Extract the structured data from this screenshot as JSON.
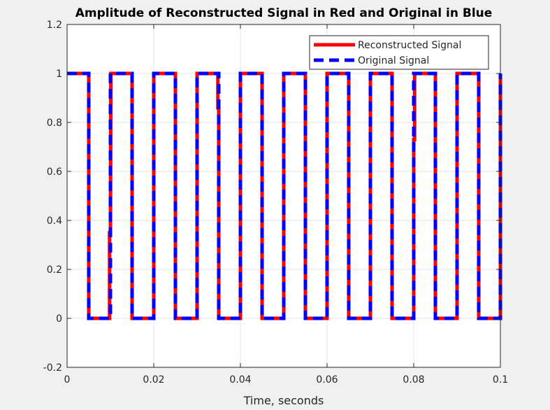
{
  "chart_data": {
    "type": "line",
    "title": "Amplitude of Reconstructed Signal in Red and Original in Blue",
    "xlabel": "Time, seconds",
    "ylabel": "",
    "xlim": [
      0,
      0.1
    ],
    "ylim": [
      -0.2,
      1.2
    ],
    "xticks": [
      0,
      0.02,
      0.04,
      0.06,
      0.08,
      0.1
    ],
    "xtick_labels": [
      "0",
      "0.02",
      "0.04",
      "0.06",
      "0.08",
      "0.1"
    ],
    "yticks": [
      -0.2,
      0,
      0.2,
      0.4,
      0.6,
      0.8,
      1,
      1.2
    ],
    "ytick_labels": [
      "-0.2",
      "0",
      "0.2",
      "0.4",
      "0.6",
      "0.8",
      "1",
      "1.2"
    ],
    "grid": true,
    "legend_position": "top-right",
    "series": [
      {
        "name": "Reconstructed Signal",
        "color": "#ff0000",
        "style": "solid",
        "x": [
          0,
          0.005,
          0.005,
          0.0095,
          0.0098,
          0.0098,
          0.01,
          0.0101,
          0.0101,
          0.015,
          0.015,
          0.02,
          0.02,
          0.025,
          0.025,
          0.03,
          0.03,
          0.0348,
          0.0348,
          0.035,
          0.035,
          0.04,
          0.04,
          0.045,
          0.045,
          0.05,
          0.05,
          0.055,
          0.055,
          0.06,
          0.06,
          0.065,
          0.065,
          0.07,
          0.07,
          0.075,
          0.075,
          0.08,
          0.08,
          0.0802,
          0.0802,
          0.085,
          0.085,
          0.09,
          0.09,
          0.095,
          0.095,
          0.1,
          0.1
        ],
        "y": [
          1,
          1,
          0,
          0,
          0,
          0.35,
          0.35,
          1,
          1,
          1,
          0,
          0,
          1,
          1,
          0,
          0,
          1,
          1,
          0.86,
          0.86,
          0,
          0,
          1,
          1,
          0,
          0,
          1,
          1,
          0,
          0,
          1,
          1,
          0,
          0,
          1,
          1,
          0,
          0,
          0.73,
          0.73,
          1,
          1,
          0,
          0,
          1,
          1,
          0,
          0,
          1
        ]
      },
      {
        "name": "Original Signal",
        "color": "#0000ff",
        "style": "dashed",
        "x": [
          0,
          0.005,
          0.005,
          0.01,
          0.01,
          0.015,
          0.015,
          0.02,
          0.02,
          0.025,
          0.025,
          0.03,
          0.03,
          0.035,
          0.035,
          0.04,
          0.04,
          0.045,
          0.045,
          0.05,
          0.05,
          0.055,
          0.055,
          0.06,
          0.06,
          0.065,
          0.065,
          0.07,
          0.07,
          0.075,
          0.075,
          0.08,
          0.08,
          0.085,
          0.085,
          0.09,
          0.09,
          0.095,
          0.095,
          0.1,
          0.1
        ],
        "y": [
          1,
          1,
          0,
          0,
          1,
          1,
          0,
          0,
          1,
          1,
          0,
          0,
          1,
          1,
          0,
          0,
          1,
          1,
          0,
          0,
          1,
          1,
          0,
          0,
          1,
          1,
          0,
          0,
          1,
          1,
          0,
          0,
          1,
          1,
          0,
          0,
          1,
          1,
          0,
          0,
          1
        ]
      }
    ]
  }
}
